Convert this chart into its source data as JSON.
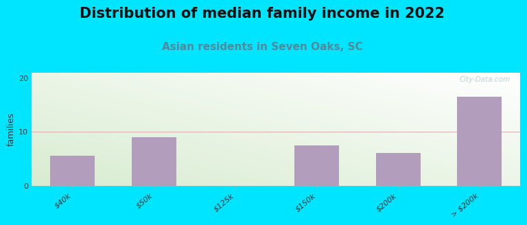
{
  "title": "Distribution of median family income in 2022",
  "subtitle": "Asian residents in Seven Oaks, SC",
  "ylabel": "families",
  "categories": [
    "$40k",
    "$50k",
    "$125k",
    "$150k",
    "$200k",
    "> $200k"
  ],
  "values": [
    5.5,
    9.0,
    0,
    7.5,
    6.0,
    16.5
  ],
  "bar_color": "#b39dbd",
  "background_color": "#00e5ff",
  "grad_color_bottom_left": "#d8ecd0",
  "grad_color_top_right": "#f8fef8",
  "title_fontsize": 15,
  "subtitle_fontsize": 11,
  "subtitle_color": "#558899",
  "ylabel_fontsize": 9,
  "tick_label_fontsize": 8,
  "yticks": [
    0,
    10,
    20
  ],
  "ylim": [
    0,
    21
  ],
  "grid_color": "#ddaaaa",
  "watermark": "City-Data.com"
}
